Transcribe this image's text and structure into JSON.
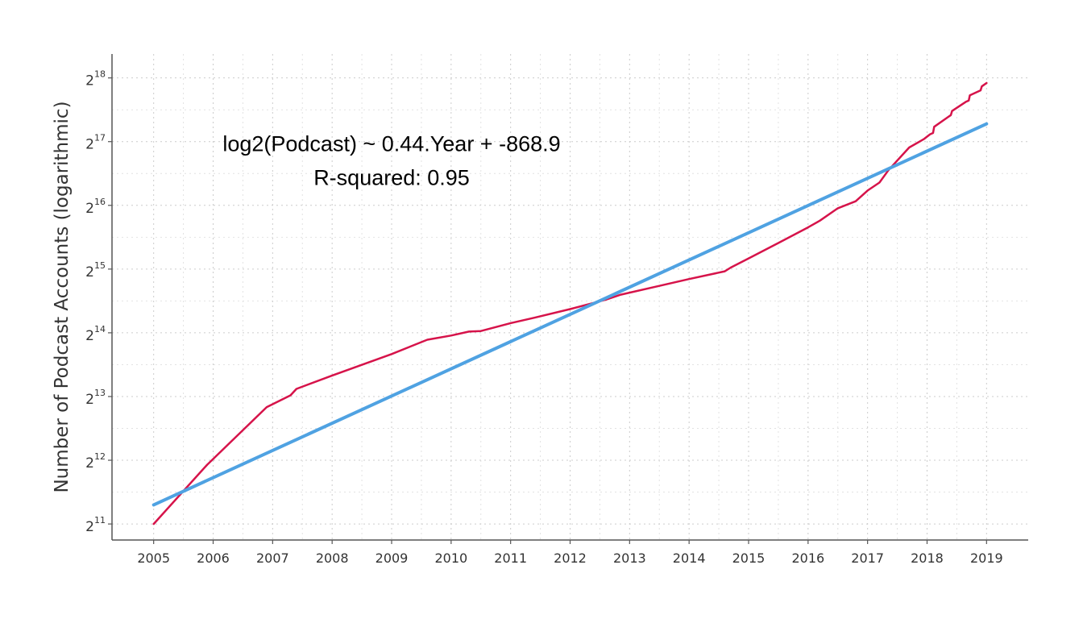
{
  "chart_data": {
    "type": "line",
    "ylabel": "Number of Podcast Accounts (logarithmic)",
    "xlabel": "",
    "y_scale": "log2",
    "xlim": [
      2004.3,
      2019.7
    ],
    "ylim": [
      1720,
      340000
    ],
    "grid": true,
    "x_ticks": [
      {
        "value": 2005,
        "label": "2005"
      },
      {
        "value": 2006,
        "label": "2006"
      },
      {
        "value": 2007,
        "label": "2007"
      },
      {
        "value": 2008,
        "label": "2008"
      },
      {
        "value": 2009,
        "label": "2009"
      },
      {
        "value": 2010,
        "label": "2010"
      },
      {
        "value": 2011,
        "label": "2011"
      },
      {
        "value": 2012,
        "label": "2012"
      },
      {
        "value": 2013,
        "label": "2013"
      },
      {
        "value": 2014,
        "label": "2014"
      },
      {
        "value": 2015,
        "label": "2015"
      },
      {
        "value": 2016,
        "label": "2016"
      },
      {
        "value": 2017,
        "label": "2017"
      },
      {
        "value": 2018,
        "label": "2018"
      },
      {
        "value": 2019,
        "label": "2019"
      }
    ],
    "y_ticks": [
      {
        "value": 2048,
        "base": "2",
        "exp": "11"
      },
      {
        "value": 4096,
        "base": "2",
        "exp": "12"
      },
      {
        "value": 8192,
        "base": "2",
        "exp": "13"
      },
      {
        "value": 16384,
        "base": "2",
        "exp": "14"
      },
      {
        "value": 32768,
        "base": "2",
        "exp": "15"
      },
      {
        "value": 65536,
        "base": "2",
        "exp": "16"
      },
      {
        "value": 131072,
        "base": "2",
        "exp": "17"
      },
      {
        "value": 262144,
        "base": "2",
        "exp": "18"
      }
    ],
    "annotation": {
      "line1": "log2(Podcast) ~ 0.44.Year + -868.9",
      "line2": "R-squared: 0.95",
      "x": 2009.0,
      "y": 110000
    },
    "series": [
      {
        "color": "#d6134a",
        "kind": "observed",
        "points": [
          [
            2005.0,
            2048
          ],
          [
            2005.9,
            3900
          ],
          [
            2006.9,
            7300
          ],
          [
            2007.3,
            8300
          ],
          [
            2007.4,
            8900
          ],
          [
            2008.0,
            10300
          ],
          [
            2009.0,
            13000
          ],
          [
            2009.6,
            15200
          ],
          [
            2010.0,
            15900
          ],
          [
            2010.3,
            16600
          ],
          [
            2010.5,
            16700
          ],
          [
            2011.0,
            18200
          ],
          [
            2011.4,
            19300
          ],
          [
            2012.0,
            21200
          ],
          [
            2012.6,
            23500
          ],
          [
            2012.85,
            24800
          ],
          [
            2013.5,
            27300
          ],
          [
            2014.0,
            29400
          ],
          [
            2014.6,
            32000
          ],
          [
            2014.7,
            33300
          ],
          [
            2015.0,
            36800
          ],
          [
            2015.5,
            43500
          ],
          [
            2016.0,
            51600
          ],
          [
            2016.2,
            55500
          ],
          [
            2016.5,
            63500
          ],
          [
            2016.8,
            68500
          ],
          [
            2017.0,
            77000
          ],
          [
            2017.2,
            84000
          ],
          [
            2017.35,
            96000
          ],
          [
            2017.7,
            123000
          ],
          [
            2017.95,
            135000
          ],
          [
            2018.05,
            142000
          ],
          [
            2018.1,
            144000
          ],
          [
            2018.12,
            154000
          ],
          [
            2018.35,
            171000
          ],
          [
            2018.4,
            175000
          ],
          [
            2018.42,
            183000
          ],
          [
            2018.65,
            202000
          ],
          [
            2018.7,
            205000
          ],
          [
            2018.72,
            217000
          ],
          [
            2018.9,
            229000
          ],
          [
            2018.92,
            239000
          ],
          [
            2019.0,
            248000
          ]
        ]
      },
      {
        "color": "#4fa2e2",
        "kind": "fit",
        "points": [
          [
            2005.0,
            2520
          ],
          [
            2019.0,
            159000
          ]
        ]
      }
    ]
  }
}
